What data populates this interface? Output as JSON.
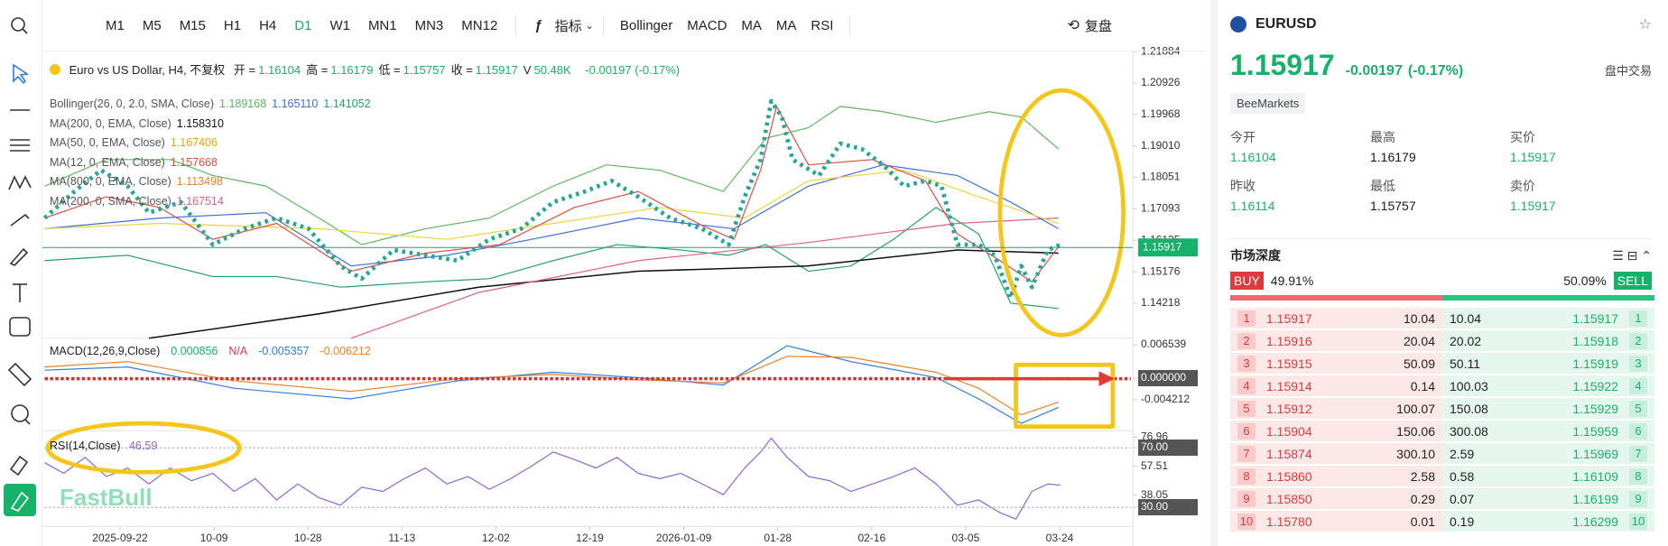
{
  "toolbar": {
    "timeframes": [
      "M1",
      "M5",
      "M15",
      "H1",
      "H4",
      "D1",
      "W1",
      "MN1",
      "MN3",
      "MN12"
    ],
    "indicator_menu": "指标",
    "indicators": [
      "Bollinger",
      "MACD",
      "MA",
      "MA",
      "RSI"
    ],
    "replay": "复盘"
  },
  "chart": {
    "header": {
      "title": "Euro vs US Dollar, H4, 不复权",
      "fields": [
        {
          "label": "开 =",
          "value": "1.16104"
        },
        {
          "label": "高 =",
          "value": "1.16179"
        },
        {
          "label": "低 =",
          "value": "1.15757"
        },
        {
          "label": "收 =",
          "value": "1.15917"
        },
        {
          "label": "V",
          "value": "50.48K"
        }
      ],
      "change": "-0.00197 (-0.17%)"
    },
    "studies": [
      {
        "name": "Bollinger(26, 0, 2.0, SMA, Close)",
        "values": [
          "1.189168",
          "1.165110",
          "1.141052"
        ]
      },
      {
        "name": "MA(200, 0, EMA, Close)",
        "values": [
          "1.158310"
        ]
      },
      {
        "name": "MA(50, 0, EMA, Close)",
        "values": [
          "1.167406"
        ]
      },
      {
        "name": "MA(12, 0, EMA, Close)",
        "values": [
          "1.157668"
        ]
      },
      {
        "name": "MA(800, 0, EMA, Close)",
        "values": [
          "1.113498"
        ]
      },
      {
        "name": "MA(200, 0, SMA, Close)",
        "values": [
          "1.167514"
        ]
      }
    ],
    "price_axis": {
      "ylim": [
        1.13146,
        1.21888
      ],
      "ticks": [
        1.21884,
        1.20926,
        1.19968,
        {
          "value": 1.1901,
          "label": "1.19010"
        },
        1.18051,
        1.17093,
        1.16135,
        1.15176,
        1.14218
      ],
      "current": 1.15917
    },
    "macd": {
      "name": "MACD(12,26,9,Close)",
      "values": [
        "0.000856",
        "N/A",
        "-0.005357",
        "-0.006212"
      ],
      "ylim": [
        -0.01025,
        0.00778
      ],
      "ticks": [
        0.006539,
        {
          "value": 0,
          "label": "0.000000"
        },
        -0.004212
      ]
    },
    "rsi": {
      "name": "RSI(14,Close)",
      "value": "46.59",
      "ylim": [
        17.3,
        81.5
      ],
      "ticks": [
        76.96,
        {
          "value": 70,
          "label": "70.00"
        },
        57.51,
        38.05,
        {
          "value": 30,
          "label": "30.00"
        }
      ]
    },
    "dates": [
      "2025-09-22",
      "10-09",
      "10-28",
      "11-13",
      "12-02",
      "12-19",
      "2026-01-09",
      "01-28",
      "02-16",
      "03-05",
      "03-24"
    ],
    "watermark": "FastBull"
  },
  "quote": {
    "symbol": "EURUSD",
    "price": "1.15917",
    "change": "-0.00197",
    "change_pct": "(-0.17%)",
    "session": "盘中交易",
    "broker": "BeeMarkets",
    "stats": [
      {
        "label": "今开",
        "value": "1.16104"
      },
      {
        "label": "最高",
        "value": "1.16179"
      },
      {
        "label": "买价",
        "value": "1.15917"
      },
      {
        "label": "昨收",
        "value": "1.16114"
      },
      {
        "label": "最低",
        "value": "1.15757"
      },
      {
        "label": "卖价",
        "value": "1.15917"
      }
    ]
  },
  "depth": {
    "title": "市场深度",
    "buy_label": "BUY",
    "buy_pct": "49.91%",
    "sell_pct": "50.09%",
    "sell_label": "SELL",
    "rows": [
      [
        "1",
        "1.15917",
        "10.04",
        "10.04",
        "1.15917",
        "1"
      ],
      [
        "2",
        "1.15916",
        "20.04",
        "20.02",
        "1.15918",
        "2"
      ],
      [
        "3",
        "1.15915",
        "50.09",
        "50.11",
        "1.15919",
        "3"
      ],
      [
        "4",
        "1.15914",
        "0.14",
        "100.03",
        "1.15922",
        "4"
      ],
      [
        "5",
        "1.15912",
        "100.07",
        "150.08",
        "1.15929",
        "5"
      ],
      [
        "6",
        "1.15904",
        "150.06",
        "300.08",
        "1.15959",
        "6"
      ],
      [
        "7",
        "1.15874",
        "300.10",
        "2.59",
        "1.15969",
        "7"
      ],
      [
        "8",
        "1.15860",
        "2.58",
        "0.58",
        "1.16109",
        "8"
      ],
      [
        "9",
        "1.15850",
        "0.29",
        "0.07",
        "1.16199",
        "9"
      ],
      [
        "10",
        "1.15780",
        "0.01",
        "0.19",
        "1.16299",
        "10"
      ]
    ]
  }
}
